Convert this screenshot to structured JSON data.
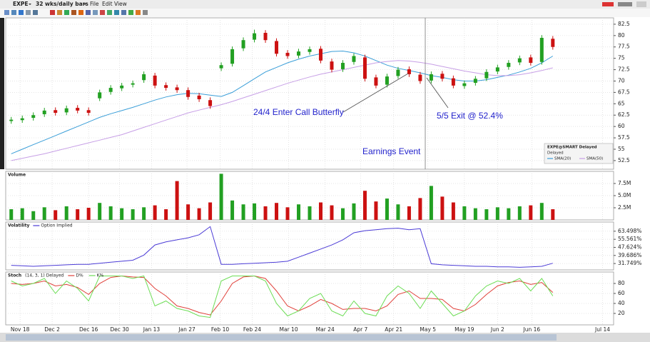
{
  "toolbar": {
    "symbol": "EXPE",
    "period": "32 wks/daily bars",
    "menus": [
      "File",
      "Edit",
      "View"
    ]
  },
  "chart_data": [
    {
      "type": "candlestick",
      "legend_title": "EXPE@SMART Delayed",
      "legend_subtitle": "Delayed",
      "up_color": "#22a022",
      "down_color": "#cc1111",
      "open": [
        61.2,
        61.4,
        61.9,
        62.7,
        63.6,
        63.1,
        64.1,
        63.6,
        66.2,
        67.6,
        68.4,
        69.2,
        70.2,
        71.2,
        69.1,
        68.6,
        68,
        66.8,
        65.8,
        72.8,
        73.8,
        77.2,
        79.1,
        80.6,
        78.8,
        76.2,
        75.6,
        76.4,
        77.1,
        74.3,
        72.6,
        74.2,
        75.2,
        70.8,
        69.2,
        71.1,
        72.6,
        71.4,
        70.1,
        71.6,
        70.6,
        68.9,
        69.6,
        70.6,
        72.1,
        73.1,
        74.1,
        75.2,
        74.2,
        79.3
      ],
      "high": [
        62.1,
        62.4,
        63.1,
        64.1,
        64.2,
        64.6,
        64.7,
        64.2,
        68.1,
        69.1,
        69.6,
        70.1,
        72.1,
        71.8,
        69.7,
        69.2,
        68.6,
        67.4,
        66.4,
        74.1,
        77.6,
        79.6,
        81.3,
        81.2,
        79.4,
        76.8,
        77.1,
        77.6,
        77.7,
        74.9,
        74.6,
        76.1,
        75.8,
        71.4,
        71.6,
        73.1,
        73.2,
        72,
        72.1,
        72.2,
        71.2,
        70.1,
        71.1,
        72.6,
        73.6,
        74.6,
        75.6,
        75.8,
        80.1,
        79.9
      ],
      "low": [
        60.6,
        60.8,
        61.3,
        62.1,
        62.4,
        62.5,
        62.9,
        62.4,
        65.6,
        67,
        67.8,
        68.6,
        69.6,
        68.4,
        67.9,
        67.4,
        65.9,
        65.4,
        63.9,
        72.2,
        73.2,
        76.6,
        78.5,
        78.4,
        75.4,
        74.9,
        75,
        75.8,
        73.9,
        71.9,
        72,
        73.6,
        69.9,
        68.4,
        68.6,
        70.5,
        70.9,
        69.4,
        69.5,
        69.9,
        68.4,
        68.3,
        69,
        70,
        71.5,
        72.5,
        73.5,
        73.4,
        73.6,
        76.9
      ],
      "close": [
        61.5,
        61.8,
        62.5,
        63.5,
        63,
        64,
        63.5,
        63,
        67.5,
        68.5,
        69,
        69.5,
        71.5,
        69,
        68.5,
        68,
        66.5,
        66,
        64.5,
        73.5,
        77,
        79,
        80.5,
        79,
        76,
        75.5,
        76.5,
        77,
        74.5,
        72.5,
        74,
        75.5,
        70.5,
        69,
        71,
        72.5,
        71.5,
        70,
        71.5,
        70.5,
        69,
        69.5,
        70.5,
        72,
        73,
        74,
        75,
        74,
        79.5,
        77.5
      ],
      "series": [
        {
          "name": "SMA(20)",
          "color": "#3a9ed8",
          "values": [
            54,
            55,
            56,
            57,
            58,
            59,
            60,
            61,
            62,
            62.8,
            63.5,
            64.2,
            65,
            65.8,
            66.5,
            67,
            67.3,
            67.2,
            66.9,
            66.6,
            67.5,
            69,
            70.5,
            72,
            73,
            74,
            74.8,
            75.5,
            76,
            76.5,
            76.6,
            76.2,
            75.5,
            74.5,
            73.5,
            72.8,
            72.3,
            71.8,
            71.2,
            70.8,
            70.3,
            70,
            70,
            70.3,
            70.8,
            71.3,
            72,
            72.8,
            74,
            75.5
          ]
        },
        {
          "name": "SMA(50)",
          "color": "#c79fe6",
          "values": [
            52.5,
            53,
            53.5,
            54,
            54.6,
            55.2,
            55.8,
            56.4,
            57,
            57.6,
            58.2,
            59,
            59.8,
            60.6,
            61.4,
            62.2,
            63,
            63.6,
            64.2,
            64.8,
            65.5,
            66.3,
            67.1,
            67.9,
            68.7,
            69.5,
            70.2,
            70.9,
            71.5,
            72,
            72.5,
            73,
            73.5,
            74,
            74.3,
            74.5,
            74.4,
            74.1,
            73.7,
            73.2,
            72.7,
            72.2,
            71.8,
            71.4,
            71.2,
            71.2,
            71.4,
            71.8,
            72.3,
            72.9
          ]
        }
      ],
      "ylim": [
        50.6,
        83.9
      ],
      "yticks": [
        52.5,
        55.0,
        57.5,
        60.0,
        62.5,
        65.0,
        67.5,
        70.0,
        72.5,
        75.0,
        77.5,
        80.0,
        82.5
      ],
      "annotations": [
        "24/4 Enter Call Butterfly",
        "5/5 Exit @ 52.4%",
        "Earnings Event"
      ]
    },
    {
      "type": "bar",
      "title": "Volume",
      "values": [
        2200000,
        2400000,
        1800000,
        2600000,
        2000000,
        2800000,
        2200000,
        2500000,
        3500000,
        2800000,
        2400000,
        2200000,
        2600000,
        3000000,
        2200000,
        8000000,
        3200000,
        2400000,
        3600000,
        9500000,
        4000000,
        3200000,
        3400000,
        2800000,
        3500000,
        2600000,
        3200000,
        2800000,
        3600000,
        3000000,
        2400000,
        3400000,
        6000000,
        3800000,
        4400000,
        3200000,
        2800000,
        4500000,
        7000000,
        4800000,
        3600000,
        2800000,
        2400000,
        2200000,
        2600000,
        2400000,
        2800000,
        3000000,
        3500000,
        2200000
      ],
      "ylim": [
        0,
        10000000
      ],
      "yticks": [
        {
          "value": 2500000,
          "label": "2.5M"
        },
        {
          "value": 5000000,
          "label": "5.0M"
        },
        {
          "value": 7500000,
          "label": "7.5M"
        }
      ]
    },
    {
      "type": "line",
      "title": "Volatility",
      "series": [
        {
          "name": "Option Implied",
          "color": "#4b3bd6",
          "values": [
            30,
            29.5,
            29,
            29.5,
            30,
            30.5,
            31,
            31,
            32,
            33,
            34,
            35,
            40,
            50,
            53,
            55,
            57,
            60,
            68,
            31,
            31,
            31.5,
            32,
            32.5,
            33,
            34,
            38,
            42,
            46,
            50,
            55,
            62,
            64,
            65,
            66,
            66.5,
            65,
            66,
            31.5,
            30.5,
            30,
            29.5,
            29,
            29,
            28.5,
            28.5,
            28,
            28.5,
            29,
            32
          ]
        }
      ],
      "ylim": [
        25.5,
        72.5
      ],
      "yticks": [
        {
          "value": 31.749,
          "label": "31.749%"
        },
        {
          "value": 39.686,
          "label": "39.686%"
        },
        {
          "value": 47.624,
          "label": "47.624%"
        },
        {
          "value": 55.561,
          "label": "55.561%"
        },
        {
          "value": 63.498,
          "label": "63.498%"
        }
      ]
    },
    {
      "type": "line",
      "title": "Stoch",
      "subtitle": "(14, 3, 1) Delayed",
      "series": [
        {
          "name": "D%",
          "color": "#e0403a",
          "values": [
            80,
            78,
            80,
            85,
            75,
            78,
            72,
            58,
            80,
            92,
            95,
            93,
            92,
            70,
            55,
            35,
            30,
            22,
            17,
            45,
            80,
            93,
            95,
            90,
            65,
            35,
            25,
            35,
            48,
            40,
            28,
            30,
            30,
            25,
            35,
            58,
            65,
            50,
            50,
            48,
            30,
            25,
            38,
            58,
            75,
            82,
            85,
            78,
            82,
            62
          ]
        },
        {
          "name": "K%",
          "color": "#6cdd55",
          "values": [
            85,
            75,
            80,
            90,
            60,
            85,
            70,
            45,
            95,
            95,
            95,
            90,
            95,
            35,
            45,
            30,
            25,
            15,
            12,
            85,
            95,
            95,
            95,
            85,
            40,
            15,
            25,
            50,
            60,
            25,
            15,
            45,
            20,
            15,
            55,
            75,
            60,
            30,
            65,
            40,
            15,
            25,
            55,
            75,
            85,
            80,
            90,
            65,
            90,
            55
          ]
        }
      ],
      "ylim": [
        -2.9,
        102.9
      ],
      "yticks": [
        20,
        40,
        60,
        80
      ],
      "xlim": [
        -0.5,
        54.5
      ],
      "xticks": [
        {
          "value": 0.8,
          "label": "Nov 18"
        },
        {
          "value": 3.7,
          "label": "Dec 2"
        },
        {
          "value": 7,
          "label": "Dec 16"
        },
        {
          "value": 9.8,
          "label": "Dec 30"
        },
        {
          "value": 12.7,
          "label": "Jan 13"
        },
        {
          "value": 15.9,
          "label": "Jan 27"
        },
        {
          "value": 18.9,
          "label": "Feb 10"
        },
        {
          "value": 21.8,
          "label": "Feb 24"
        },
        {
          "value": 25.1,
          "label": "Mar 10"
        },
        {
          "value": 28.4,
          "label": "Mar 24"
        },
        {
          "value": 31.6,
          "label": "Apr 7"
        },
        {
          "value": 34.6,
          "label": "Apr 21"
        },
        {
          "value": 37.7,
          "label": "May 5"
        },
        {
          "value": 41,
          "label": "May 19"
        },
        {
          "value": 44,
          "label": "Jun 2"
        },
        {
          "value": 47.1,
          "label": "Jun 16"
        },
        {
          "value": 53.5,
          "label": "Jul 14"
        }
      ]
    }
  ]
}
